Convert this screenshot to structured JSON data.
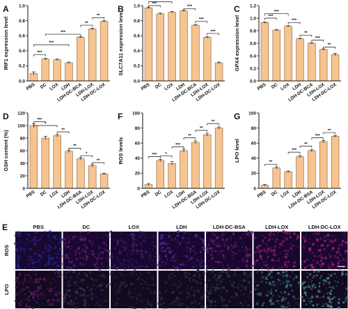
{
  "colors": {
    "bar_fill": "#f6c490",
    "bar_stroke": "#8a5a2b",
    "axis": "#111111",
    "ros_tile_bg": "#1a0730",
    "lpo_tile_bg": "#120a1e"
  },
  "chart_data": [
    {
      "letter": "A",
      "type": "bar",
      "ylabel": "IRF1 expression level",
      "ylim": [
        0,
        1.0
      ],
      "yticks": [
        0.0,
        0.2,
        0.4,
        0.6,
        0.8,
        1.0
      ],
      "yticklabels": [
        "0.0",
        "0.2",
        "0.4",
        "0.6",
        "0.8",
        "1.0"
      ],
      "categories": [
        "PBS",
        "DC",
        "LOX",
        "LDH",
        "LDH-DC-BCA",
        "LDH-LOX",
        "LDH-DC-LOX"
      ],
      "values": [
        0.1,
        0.29,
        0.28,
        0.24,
        0.58,
        0.69,
        0.79
      ],
      "errors": [
        0.02,
        0.01,
        0.01,
        0.01,
        0.01,
        0.01,
        0.01
      ],
      "sig": [
        {
          "a": 0,
          "b": 1,
          "label": "***",
          "level": 0.35
        },
        {
          "a": 0,
          "b": 3,
          "label": "***",
          "level": 0.48
        },
        {
          "a": 1,
          "b": 4,
          "label": "***",
          "level": 0.62
        },
        {
          "a": 4,
          "b": 5,
          "label": "**",
          "level": 0.74
        },
        {
          "a": 5,
          "b": 6,
          "label": "**",
          "level": 0.84
        }
      ]
    },
    {
      "letter": "B",
      "type": "bar",
      "ylabel": "SLC7A11 expression level",
      "ylim": [
        0,
        1.0
      ],
      "yticks": [
        0.0,
        0.2,
        0.4,
        0.6,
        0.8,
        1.0
      ],
      "yticklabels": [
        "0.0",
        "0.2",
        "0.4",
        "0.6",
        "0.8",
        "1.0"
      ],
      "categories": [
        "PBS",
        "DC",
        "LOX",
        "LDH",
        "LDH-DC-BCA",
        "LDH-LOX",
        "LDH-DC-LOX"
      ],
      "values": [
        0.97,
        0.89,
        0.91,
        0.93,
        0.74,
        0.58,
        0.24
      ],
      "errors": [
        0.01,
        0.01,
        0.01,
        0.01,
        0.01,
        0.01,
        0.01
      ],
      "sig": [
        {
          "a": 0,
          "b": 1,
          "label": "***",
          "level": 1.0
        },
        {
          "a": 0,
          "b": 2,
          "label": "***",
          "level": 1.05
        },
        {
          "a": 0,
          "b": 3,
          "label": "***",
          "level": 1.11
        },
        {
          "a": 3,
          "b": 4,
          "label": "***",
          "level": 0.96
        },
        {
          "a": 4,
          "b": 5,
          "label": "***",
          "level": 0.79
        },
        {
          "a": 5,
          "b": 6,
          "label": "***",
          "level": 0.63
        }
      ]
    },
    {
      "letter": "C",
      "type": "bar",
      "ylabel": "GPX4 expression level",
      "ylim": [
        0,
        1.2
      ],
      "yticks": [
        0.0,
        0.2,
        0.4,
        0.6,
        0.8,
        1.0,
        1.2
      ],
      "yticklabels": [
        "0.0",
        "0.2",
        "0.4",
        "0.6",
        "0.8",
        "1.0",
        "1.2"
      ],
      "categories": [
        "PBS",
        "DC",
        "LOX",
        "LDH",
        "LDH-DC-BCA",
        "LDH-LOX",
        "LDH-DC-LOX"
      ],
      "values": [
        0.93,
        0.81,
        0.87,
        0.67,
        0.6,
        0.5,
        0.42
      ],
      "errors": [
        0.01,
        0.01,
        0.01,
        0.01,
        0.01,
        0.01,
        0.02
      ],
      "sig": [
        {
          "a": 0,
          "b": 1,
          "label": "***",
          "level": 1.0
        },
        {
          "a": 0,
          "b": 2,
          "label": "***",
          "level": 1.07
        },
        {
          "a": 2,
          "b": 3,
          "label": "***",
          "level": 0.93
        },
        {
          "a": 3,
          "b": 4,
          "label": "**",
          "level": 0.73
        },
        {
          "a": 4,
          "b": 5,
          "label": "***",
          "level": 0.65
        },
        {
          "a": 5,
          "b": 6,
          "label": "**",
          "level": 0.54
        }
      ]
    },
    {
      "letter": "D",
      "type": "bar",
      "ylabel": "GSH content (%)",
      "ylim": [
        0,
        120
      ],
      "yticks": [
        0,
        20,
        40,
        60,
        80,
        100,
        120
      ],
      "yticklabels": [
        "0",
        "20",
        "40",
        "60",
        "80",
        "100",
        "120"
      ],
      "categories": [
        "PBS",
        "DC",
        "LOX",
        "LDH",
        "LDH-DC-BSA",
        "LDH-LOX",
        "LDH-DC-LOX"
      ],
      "values": [
        100,
        80,
        84,
        59,
        47,
        36,
        23
      ],
      "errors": [
        3,
        3,
        2,
        2,
        2,
        2,
        1
      ],
      "sig": [
        {
          "a": 0,
          "b": 1,
          "label": "***",
          "level": 106
        },
        {
          "a": 0,
          "b": 2,
          "label": "*",
          "level": 100
        },
        {
          "a": 2,
          "b": 3,
          "label": "**",
          "level": 90
        },
        {
          "a": 3,
          "b": 4,
          "label": "**",
          "level": 64
        },
        {
          "a": 4,
          "b": 5,
          "label": "*",
          "level": 52
        },
        {
          "a": 5,
          "b": 6,
          "label": "**",
          "level": 41
        }
      ]
    },
    {
      "letter": "F",
      "type": "bar",
      "ylabel": "ROS levels",
      "ylim": [
        0,
        100
      ],
      "yticks": [
        0,
        20,
        40,
        60,
        80,
        100
      ],
      "yticklabels": [
        "0",
        "20",
        "40",
        "60",
        "80",
        "100"
      ],
      "categories": [
        "PBS",
        "DC",
        "LOX",
        "LDH",
        "LDH-DC-BSA",
        "LDH-LOX",
        "LDH-DC-LOX"
      ],
      "values": [
        5,
        37,
        33,
        50,
        61,
        71,
        80
      ],
      "errors": [
        1.5,
        1.5,
        2.5,
        2,
        2,
        2,
        1.5
      ],
      "sig": [
        {
          "a": 0,
          "b": 1,
          "label": "***",
          "level": 42
        },
        {
          "a": 1,
          "b": 2,
          "label": "*",
          "level": 43
        },
        {
          "a": 2,
          "b": 3,
          "label": "***",
          "level": 55
        },
        {
          "a": 3,
          "b": 4,
          "label": "**",
          "level": 67
        },
        {
          "a": 4,
          "b": 5,
          "label": "**",
          "level": 77
        },
        {
          "a": 5,
          "b": 6,
          "label": "**",
          "level": 86
        }
      ]
    },
    {
      "letter": "G",
      "type": "bar",
      "ylabel": "LPO level",
      "ylim": [
        0,
        100
      ],
      "yticks": [
        0,
        20,
        40,
        60,
        80,
        100
      ],
      "yticklabels": [
        "0",
        "20",
        "40",
        "60",
        "80",
        "100"
      ],
      "categories": [
        "PBS",
        "DC",
        "LOX",
        "LDH",
        "LDH-DC-BSA",
        "LDH-LOX",
        "LDH-DC-LOX"
      ],
      "values": [
        4,
        27,
        22,
        42,
        50,
        62,
        69
      ],
      "errors": [
        1,
        1.5,
        1,
        1.5,
        1.5,
        1.5,
        1
      ],
      "sig": [
        {
          "a": 0,
          "b": 1,
          "label": "**",
          "level": 32
        },
        {
          "a": 2,
          "b": 3,
          "label": "***",
          "level": 48
        },
        {
          "a": 3,
          "b": 4,
          "label": "**",
          "level": 56
        },
        {
          "a": 4,
          "b": 5,
          "label": "***",
          "level": 67
        },
        {
          "a": 5,
          "b": 6,
          "label": "**",
          "level": 74
        }
      ]
    }
  ],
  "image_grid": {
    "letter": "E",
    "columns": [
      "PBS",
      "DC",
      "LOX",
      "LDH",
      "LDH-DC-BSA",
      "LDH-LOX",
      "LDH-DC-LOX"
    ],
    "rows": [
      "ROS",
      "LPO"
    ],
    "ros_colors": [
      "#1d2a8a",
      "#5a1f6e",
      "#3a2270",
      "#4a2a8c",
      "#6a2070",
      "#8a1e6a",
      "#a01e78"
    ],
    "lpo_colors": [
      "#5a1a6a",
      "#3a2a52",
      "#2a2240",
      "#2a2a48",
      "#2e3a4e",
      "#3a6a7a",
      "#4a8a92"
    ]
  }
}
